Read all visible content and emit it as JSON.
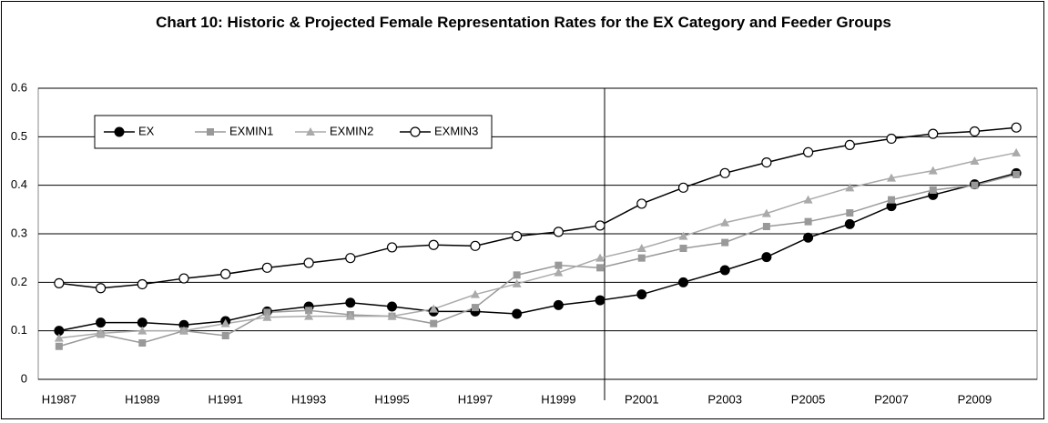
{
  "chart_data": {
    "type": "line",
    "title": "Chart 10: Historic & Projected Female Representation Rates for the EX Category and Feeder Groups",
    "categories": [
      "H1987",
      null,
      "H1989",
      null,
      "H1991",
      null,
      "H1993",
      null,
      "H1995",
      null,
      "H1997",
      null,
      "H1999",
      null,
      "P2001",
      null,
      "P2003",
      null,
      "P2005",
      null,
      "P2007",
      null,
      "P2009",
      null
    ],
    "series": [
      {
        "name": "EX",
        "color": "#000000",
        "marker": "circle",
        "values": [
          0.1,
          0.117,
          0.117,
          0.112,
          0.12,
          0.14,
          0.15,
          0.158,
          0.15,
          0.14,
          0.14,
          0.135,
          0.153,
          0.163,
          0.175,
          0.2,
          0.225,
          0.252,
          0.292,
          0.32,
          0.357,
          0.38,
          0.402,
          0.425
        ]
      },
      {
        "name": "EXMIN1",
        "color": "#999999",
        "marker": "square",
        "values": [
          0.068,
          0.093,
          0.075,
          0.1,
          0.09,
          0.138,
          0.142,
          0.133,
          0.13,
          0.115,
          0.148,
          0.215,
          0.235,
          0.23,
          0.25,
          0.27,
          0.282,
          0.315,
          0.325,
          0.343,
          0.37,
          0.39,
          0.4,
          0.422
        ]
      },
      {
        "name": "EXMIN2",
        "color": "#aaaaaa",
        "marker": "triangle",
        "values": [
          0.085,
          0.095,
          0.1,
          0.1,
          0.115,
          0.128,
          0.13,
          0.13,
          0.13,
          0.145,
          0.175,
          0.197,
          0.22,
          0.25,
          0.27,
          0.295,
          0.323,
          0.342,
          0.37,
          0.395,
          0.415,
          0.43,
          0.45,
          0.467
        ]
      },
      {
        "name": "EXMIN3",
        "color": "#000000",
        "marker": "circle-open",
        "values": [
          0.198,
          0.188,
          0.196,
          0.208,
          0.217,
          0.23,
          0.24,
          0.25,
          0.272,
          0.277,
          0.275,
          0.295,
          0.304,
          0.317,
          0.362,
          0.395,
          0.425,
          0.447,
          0.468,
          0.483,
          0.496,
          0.506,
          0.511,
          0.519
        ]
      }
    ],
    "ylim": [
      0,
      0.6
    ],
    "yticks": [
      0,
      0.1,
      0.2,
      0.3,
      0.4,
      0.5,
      0.6
    ],
    "grid": true,
    "legend": "top-left"
  }
}
